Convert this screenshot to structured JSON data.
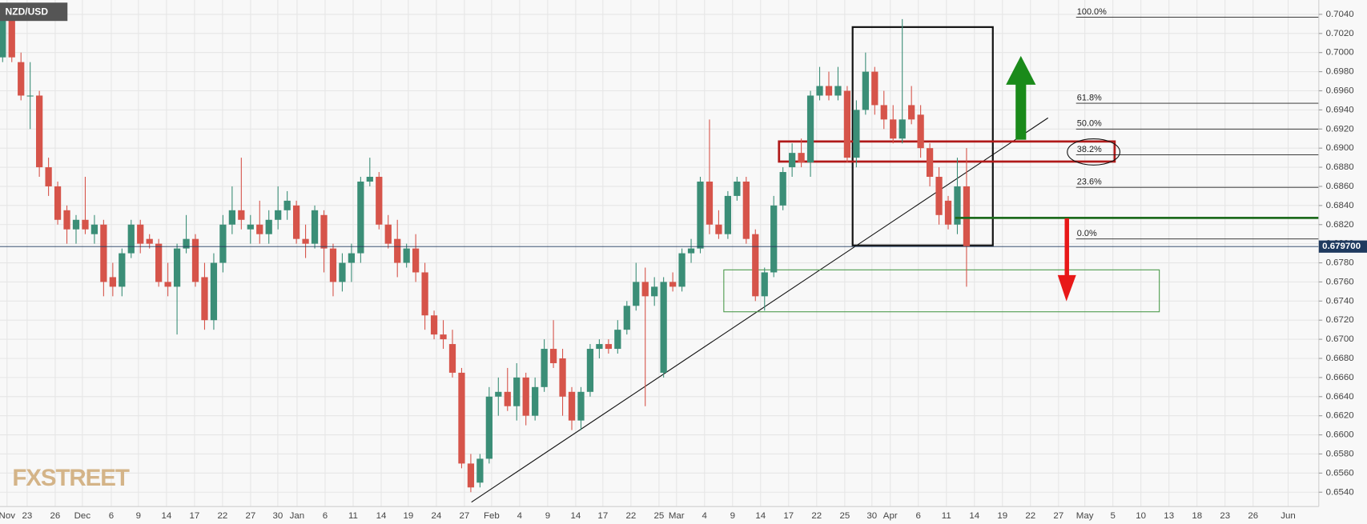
{
  "chart_data": {
    "type": "candlestick",
    "symbol": "NZD/USD",
    "watermark": "FXSTREET",
    "x_labels": [
      "Nov",
      "23",
      "26",
      "Dec",
      "6",
      "9",
      "14",
      "17",
      "22",
      "27",
      "30",
      "Jan",
      "6",
      "11",
      "14",
      "19",
      "24",
      "27",
      "Feb",
      "4",
      "9",
      "14",
      "17",
      "22",
      "25",
      "Mar",
      "4",
      "9",
      "14",
      "17",
      "22",
      "25",
      "30",
      "Apr",
      "6",
      "11",
      "14",
      "19",
      "22",
      "27",
      "May",
      "5",
      "10",
      "13",
      "18",
      "23",
      "26",
      "Jun"
    ],
    "open": [
      0.6995,
      0.7035,
      0.699,
      0.6955,
      0.6955,
      0.688,
      0.686,
      0.6835,
      0.6815,
      0.6825,
      0.681,
      0.682,
      0.6765,
      0.6755,
      0.679,
      0.682,
      0.6805,
      0.68,
      0.676,
      0.6755,
      0.6795,
      0.6805,
      0.6765,
      0.672,
      0.678,
      0.682,
      0.6835,
      0.6815,
      0.682,
      0.681,
      0.6825,
      0.6835,
      0.684,
      0.6805,
      0.68,
      0.683,
      0.6795,
      0.676,
      0.678,
      0.679,
      0.6865,
      0.687,
      0.682,
      0.6805,
      0.678,
      0.6795,
      0.677,
      0.6725,
      0.6705,
      0.6695,
      0.6665,
      0.657,
      0.655,
      0.6575,
      0.664,
      0.6645,
      0.663,
      0.666,
      0.662,
      0.665,
      0.669,
      0.668,
      0.6645,
      0.6615,
      0.6645,
      0.669,
      0.6695,
      0.669,
      0.671,
      0.6735,
      0.676,
      0.6745,
      0.6665,
      0.676,
      0.6755,
      0.679,
      0.6795,
      0.6865,
      0.682,
      0.681,
      0.685,
      0.6865,
      0.681,
      0.6745,
      0.677,
      0.684,
      0.688,
      0.6895,
      0.6885,
      0.6955,
      0.6965,
      0.6955,
      0.696,
      0.689,
      0.694,
      0.698,
      0.6945,
      0.693,
      0.691,
      0.6945,
      0.6935,
      0.69,
      0.687,
      0.6845,
      0.682,
      0.686
    ],
    "high": [
      0.7045,
      0.7045,
      0.7,
      0.699,
      0.696,
      0.689,
      0.6865,
      0.684,
      0.683,
      0.687,
      0.683,
      0.6825,
      0.678,
      0.6795,
      0.6825,
      0.6825,
      0.681,
      0.6805,
      0.678,
      0.68,
      0.683,
      0.681,
      0.678,
      0.679,
      0.683,
      0.686,
      0.689,
      0.683,
      0.6845,
      0.6835,
      0.686,
      0.6855,
      0.6845,
      0.682,
      0.684,
      0.6835,
      0.68,
      0.679,
      0.68,
      0.687,
      0.689,
      0.6875,
      0.683,
      0.6825,
      0.68,
      0.681,
      0.678,
      0.673,
      0.672,
      0.671,
      0.667,
      0.658,
      0.658,
      0.665,
      0.666,
      0.667,
      0.6675,
      0.6665,
      0.666,
      0.67,
      0.672,
      0.669,
      0.665,
      0.665,
      0.6695,
      0.67,
      0.67,
      0.672,
      0.674,
      0.678,
      0.6775,
      0.6765,
      0.6765,
      0.677,
      0.6795,
      0.6805,
      0.687,
      0.693,
      0.6835,
      0.6855,
      0.687,
      0.687,
      0.6815,
      0.6775,
      0.685,
      0.688,
      0.6905,
      0.691,
      0.696,
      0.6985,
      0.698,
      0.6985,
      0.6965,
      0.695,
      0.7,
      0.6985,
      0.696,
      0.6945,
      0.7035,
      0.6965,
      0.6945,
      0.6905,
      0.688,
      0.685,
      0.689,
      0.69
    ],
    "low": [
      0.699,
      0.699,
      0.695,
      0.692,
      0.687,
      0.685,
      0.682,
      0.68,
      0.68,
      0.681,
      0.68,
      0.6745,
      0.6745,
      0.6745,
      0.6785,
      0.679,
      0.6795,
      0.6755,
      0.6745,
      0.6705,
      0.679,
      0.6755,
      0.671,
      0.671,
      0.677,
      0.681,
      0.6815,
      0.68,
      0.68,
      0.68,
      0.6815,
      0.6825,
      0.68,
      0.6785,
      0.6795,
      0.677,
      0.6745,
      0.675,
      0.676,
      0.678,
      0.686,
      0.6815,
      0.6795,
      0.6765,
      0.6775,
      0.676,
      0.671,
      0.67,
      0.669,
      0.666,
      0.6565,
      0.654,
      0.6545,
      0.657,
      0.662,
      0.6625,
      0.6615,
      0.661,
      0.6615,
      0.6645,
      0.667,
      0.662,
      0.6605,
      0.6605,
      0.664,
      0.668,
      0.6685,
      0.6685,
      0.6705,
      0.673,
      0.663,
      0.6735,
      0.666,
      0.675,
      0.675,
      0.678,
      0.679,
      0.681,
      0.6805,
      0.6805,
      0.6845,
      0.68,
      0.674,
      0.673,
      0.6765,
      0.6835,
      0.687,
      0.688,
      0.687,
      0.695,
      0.695,
      0.695,
      0.6885,
      0.688,
      0.6935,
      0.6935,
      0.692,
      0.6905,
      0.6905,
      0.6925,
      0.689,
      0.686,
      0.682,
      0.6815,
      0.681,
      0.6755
    ],
    "close": [
      0.7035,
      0.6995,
      0.6955,
      0.6955,
      0.688,
      0.686,
      0.6825,
      0.6815,
      0.6825,
      0.6815,
      0.682,
      0.676,
      0.6755,
      0.679,
      0.682,
      0.68,
      0.68,
      0.676,
      0.6755,
      0.6795,
      0.6805,
      0.676,
      0.672,
      0.678,
      0.682,
      0.6835,
      0.6825,
      0.682,
      0.681,
      0.6825,
      0.6835,
      0.6845,
      0.6805,
      0.68,
      0.6835,
      0.6795,
      0.676,
      0.678,
      0.679,
      0.6865,
      0.687,
      0.682,
      0.68,
      0.678,
      0.6795,
      0.677,
      0.6725,
      0.6705,
      0.67,
      0.6665,
      0.657,
      0.6545,
      0.6575,
      0.664,
      0.6645,
      0.663,
      0.666,
      0.662,
      0.665,
      0.669,
      0.6675,
      0.664,
      0.6615,
      0.6645,
      0.669,
      0.6695,
      0.669,
      0.671,
      0.6735,
      0.676,
      0.6745,
      0.6755,
      0.676,
      0.6755,
      0.679,
      0.6795,
      0.6865,
      0.682,
      0.681,
      0.685,
      0.6865,
      0.6805,
      0.6745,
      0.677,
      0.684,
      0.6875,
      0.6895,
      0.6885,
      0.6955,
      0.6965,
      0.6955,
      0.6965,
      0.689,
      0.694,
      0.698,
      0.6945,
      0.693,
      0.691,
      0.693,
      0.693,
      0.69,
      0.687,
      0.683,
      0.682,
      0.686,
      0.6797
    ],
    "up_color": "#3b8e77",
    "down_color": "#d6544a",
    "ylim": [
      0.6525,
      0.7055
    ],
    "yticks": [
      {
        "value": 0.654,
        "label": "0.6540"
      },
      {
        "value": 0.656,
        "label": "0.6560"
      },
      {
        "value": 0.658,
        "label": "0.6580"
      },
      {
        "value": 0.66,
        "label": "0.6600"
      },
      {
        "value": 0.662,
        "label": "0.6620"
      },
      {
        "value": 0.664,
        "label": "0.6640"
      },
      {
        "value": 0.666,
        "label": "0.6660"
      },
      {
        "value": 0.668,
        "label": "0.6680"
      },
      {
        "value": 0.67,
        "label": "0.6700"
      },
      {
        "value": 0.672,
        "label": "0.6720"
      },
      {
        "value": 0.674,
        "label": "0.6740"
      },
      {
        "value": 0.676,
        "label": "0.6760"
      },
      {
        "value": 0.678,
        "label": "0.6780"
      },
      {
        "value": 0.68,
        "label": "0.6800"
      },
      {
        "value": 0.682,
        "label": "0.6820"
      },
      {
        "value": 0.684,
        "label": "0.6840"
      },
      {
        "value": 0.686,
        "label": "0.6860"
      },
      {
        "value": 0.688,
        "label": "0.6880"
      },
      {
        "value": 0.69,
        "label": "0.6900"
      },
      {
        "value": 0.692,
        "label": "0.6920"
      },
      {
        "value": 0.694,
        "label": "0.6940"
      },
      {
        "value": 0.696,
        "label": "0.6960"
      },
      {
        "value": 0.698,
        "label": "0.6980"
      },
      {
        "value": 0.7,
        "label": "0.7000"
      },
      {
        "value": 0.702,
        "label": "0.7020"
      },
      {
        "value": 0.704,
        "label": "0.7040"
      }
    ],
    "current_price": {
      "value": 0.6797,
      "label": "0.679700"
    },
    "breakdown_level": 0.6827,
    "fib_levels": [
      {
        "label": "100.0%",
        "value": 0.7037
      },
      {
        "label": "61.8%",
        "value": 0.6947
      },
      {
        "label": "50.0%",
        "value": 0.692
      },
      {
        "label": "38.2%",
        "value": 0.6893
      },
      {
        "label": "23.6%",
        "value": 0.6859
      },
      {
        "label": "0.0%",
        "value": 0.6805
      }
    ],
    "grid": true
  }
}
